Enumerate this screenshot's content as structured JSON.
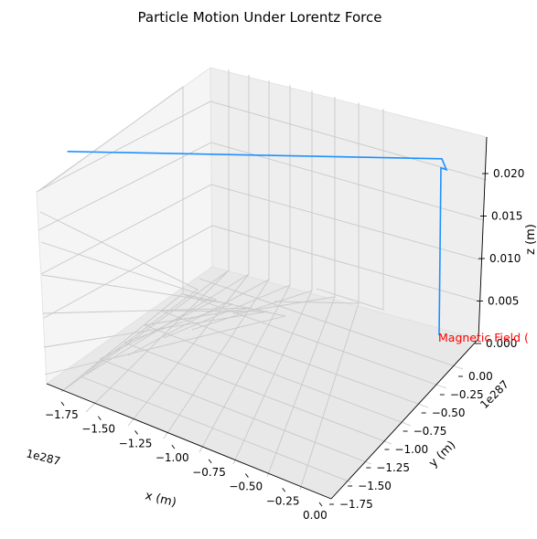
{
  "chart_data": {
    "type": "line",
    "projection": "3d",
    "title": "Particle Motion Under Lorentz Force",
    "xlabel": "x (m)",
    "ylabel": "y (m)",
    "zlabel": "z (m)",
    "x_offset_label": "1e287",
    "y_offset_label": "1e287",
    "x_ticks": [
      "−1.75",
      "−1.50",
      "−1.25",
      "−1.00",
      "−0.75",
      "−0.50",
      "−0.25",
      "0.00"
    ],
    "y_ticks": [
      "0.00",
      "−0.25",
      "−0.50",
      "−0.75",
      "−1.00",
      "−1.25",
      "−1.50",
      "−1.75"
    ],
    "z_ticks": [
      "0.000",
      "0.005",
      "0.010",
      "0.015",
      "0.020"
    ],
    "grid": true,
    "annotation": {
      "text": "Magnetic Field (",
      "color": "#ff0000"
    },
    "series": [
      {
        "color": "#1e90ff",
        "points": [
          {
            "x": 0.0,
            "y": -1.6,
            "z": 0.0
          },
          {
            "x": 0.0,
            "y": -1.6,
            "z": 0.021
          },
          {
            "x": -1.75,
            "y": -1.75,
            "z": 0.022
          }
        ]
      }
    ]
  }
}
